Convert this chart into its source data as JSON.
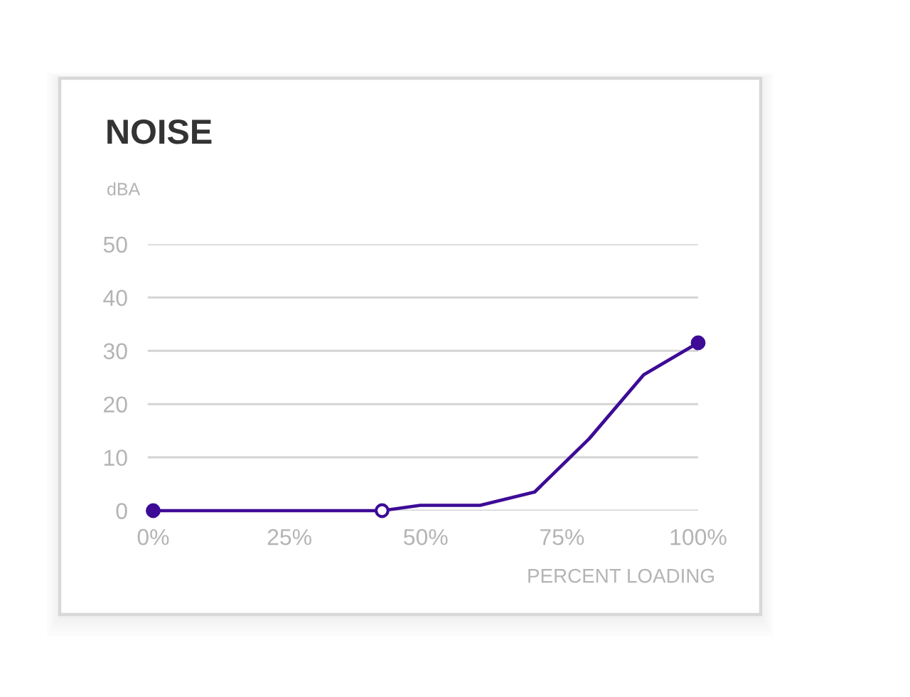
{
  "chart_data": {
    "type": "line",
    "title": "NOISE",
    "ylabel": "dBA",
    "xlabel": "PERCENT LOADING",
    "xlim": [
      -1,
      100
    ],
    "xticks": [
      {
        "value": 0,
        "label": "0%"
      },
      {
        "value": 25,
        "label": "25%"
      },
      {
        "value": 50,
        "label": "50%"
      },
      {
        "value": 75,
        "label": "75%"
      },
      {
        "value": 100,
        "label": "100%"
      }
    ],
    "ylim": [
      0,
      50
    ],
    "yticks": [
      0,
      10,
      20,
      30,
      40,
      50
    ],
    "grid": "y",
    "series": [
      {
        "color": "#3d0b96",
        "marker": "none",
        "line_style": "solid",
        "x": [
          0,
          42,
          49,
          60,
          70,
          80,
          90,
          100
        ],
        "values": [
          0,
          0,
          1,
          1,
          3.5,
          13.5,
          25.5,
          31.5
        ]
      },
      {
        "type": "scatter",
        "color": "#3d0b96",
        "marker": "circle",
        "x": [
          0,
          100
        ],
        "values": [
          0,
          31.5
        ]
      },
      {
        "type": "scatter",
        "color": "#ffffff",
        "marker": "circle",
        "x": [
          42
        ],
        "values": [
          0
        ]
      }
    ]
  }
}
